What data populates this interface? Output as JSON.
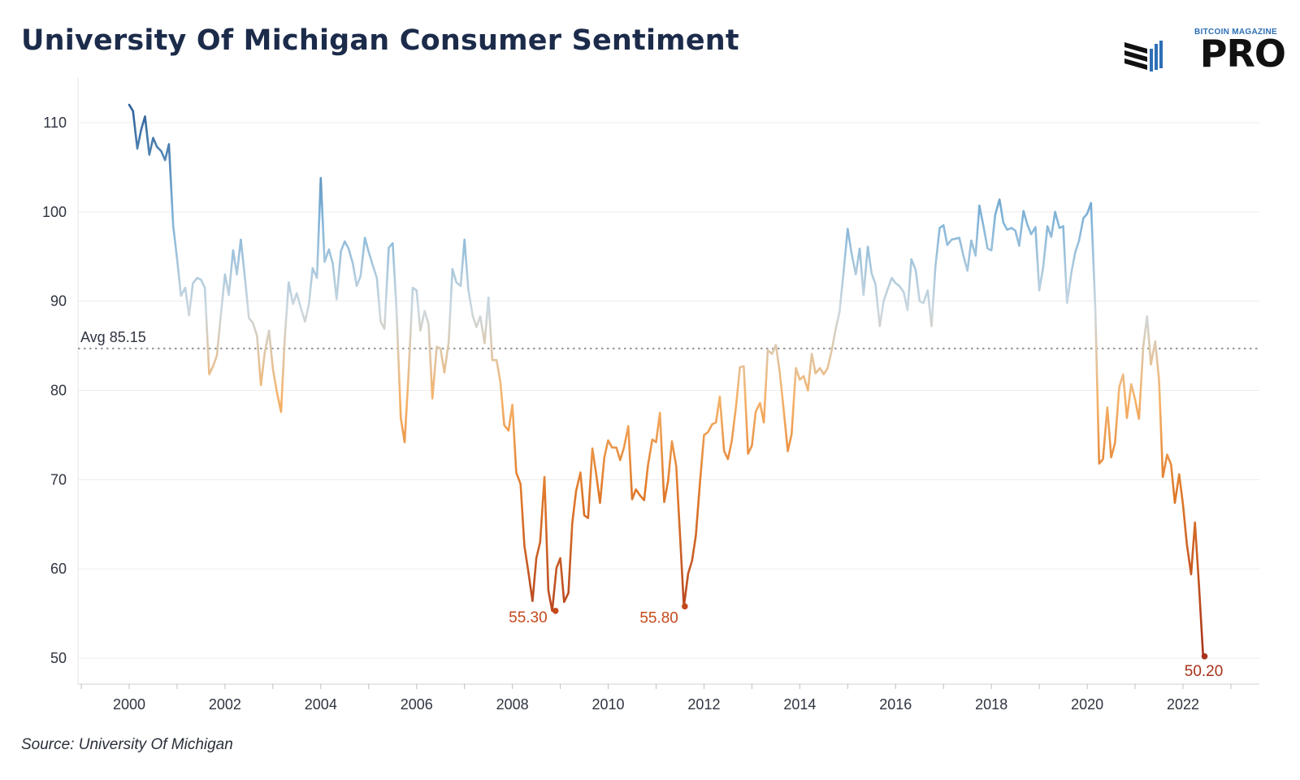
{
  "header": {
    "title": "University Of Michigan Consumer Sentiment"
  },
  "logo": {
    "small_text": "BITCOIN MAGAZINE",
    "big_text": "PRO",
    "mark_icon": "stacked-bars-logo-icon"
  },
  "footer": {
    "source": "Source: University Of Michigan"
  },
  "colors": {
    "high": "#2b5f97",
    "mid_blue": "#7fb3d8",
    "neutral": "#cbd8e0",
    "mid_orange": "#f5b36a",
    "low": "#e07a2b",
    "lowest": "#a8321a",
    "avg_line": "#9a9a9a",
    "grid": "#ececec"
  },
  "chart_data": {
    "type": "line",
    "title": "University Of Michigan Consumer Sentiment",
    "xlabel": "",
    "ylabel": "",
    "xlim": [
      1999.0,
      2023.2
    ],
    "ylim": [
      45,
      115
    ],
    "x_ticks": [
      "2000",
      "2002",
      "2004",
      "2006",
      "2008",
      "2010",
      "2012",
      "2014",
      "2016",
      "2018",
      "2020",
      "2022"
    ],
    "y_ticks": [
      "50",
      "60",
      "70",
      "80",
      "90",
      "100",
      "110"
    ],
    "grid": true,
    "average": {
      "value": 85.15,
      "label": "Avg 85.15"
    },
    "annotations": [
      {
        "x": 2008.9,
        "y": 55.3,
        "label": "55.30"
      },
      {
        "x": 2011.6,
        "y": 55.8,
        "label": "55.80"
      },
      {
        "x": 2022.45,
        "y": 50.2,
        "label": "50.20"
      }
    ],
    "series": [
      {
        "points": [
          [
            2000.0,
            112.0
          ],
          [
            2000.08,
            111.3
          ],
          [
            2000.17,
            107.1
          ],
          [
            2000.25,
            109.2
          ],
          [
            2000.33,
            110.7
          ],
          [
            2000.42,
            106.4
          ],
          [
            2000.5,
            108.3
          ],
          [
            2000.58,
            107.3
          ],
          [
            2000.67,
            106.8
          ],
          [
            2000.75,
            105.8
          ],
          [
            2000.83,
            107.6
          ],
          [
            2000.92,
            98.4
          ],
          [
            2001.0,
            94.7
          ],
          [
            2001.08,
            90.6
          ],
          [
            2001.17,
            91.5
          ],
          [
            2001.25,
            88.4
          ],
          [
            2001.33,
            92.0
          ],
          [
            2001.42,
            92.6
          ],
          [
            2001.5,
            92.4
          ],
          [
            2001.58,
            91.5
          ],
          [
            2001.67,
            81.8
          ],
          [
            2001.75,
            82.7
          ],
          [
            2001.83,
            83.9
          ],
          [
            2001.92,
            88.8
          ],
          [
            2002.0,
            93.0
          ],
          [
            2002.08,
            90.7
          ],
          [
            2002.17,
            95.7
          ],
          [
            2002.25,
            93.0
          ],
          [
            2002.33,
            96.9
          ],
          [
            2002.42,
            92.4
          ],
          [
            2002.5,
            88.1
          ],
          [
            2002.58,
            87.6
          ],
          [
            2002.67,
            86.1
          ],
          [
            2002.75,
            80.6
          ],
          [
            2002.83,
            84.2
          ],
          [
            2002.92,
            86.7
          ],
          [
            2003.0,
            82.4
          ],
          [
            2003.08,
            79.9
          ],
          [
            2003.17,
            77.6
          ],
          [
            2003.25,
            86.0
          ],
          [
            2003.33,
            92.1
          ],
          [
            2003.42,
            89.7
          ],
          [
            2003.5,
            90.9
          ],
          [
            2003.58,
            89.3
          ],
          [
            2003.67,
            87.7
          ],
          [
            2003.75,
            89.6
          ],
          [
            2003.83,
            93.7
          ],
          [
            2003.92,
            92.6
          ],
          [
            2004.0,
            103.8
          ],
          [
            2004.08,
            94.4
          ],
          [
            2004.17,
            95.8
          ],
          [
            2004.25,
            94.2
          ],
          [
            2004.33,
            90.2
          ],
          [
            2004.42,
            95.6
          ],
          [
            2004.5,
            96.7
          ],
          [
            2004.58,
            95.9
          ],
          [
            2004.67,
            94.2
          ],
          [
            2004.75,
            91.7
          ],
          [
            2004.83,
            92.8
          ],
          [
            2004.92,
            97.1
          ],
          [
            2005.0,
            95.5
          ],
          [
            2005.08,
            94.1
          ],
          [
            2005.17,
            92.6
          ],
          [
            2005.25,
            87.7
          ],
          [
            2005.33,
            86.9
          ],
          [
            2005.42,
            96.0
          ],
          [
            2005.5,
            96.5
          ],
          [
            2005.58,
            89.1
          ],
          [
            2005.67,
            76.9
          ],
          [
            2005.75,
            74.2
          ],
          [
            2005.83,
            81.6
          ],
          [
            2005.92,
            91.5
          ],
          [
            2006.0,
            91.2
          ],
          [
            2006.08,
            86.7
          ],
          [
            2006.17,
            88.9
          ],
          [
            2006.25,
            87.4
          ],
          [
            2006.33,
            79.1
          ],
          [
            2006.42,
            84.9
          ],
          [
            2006.5,
            84.7
          ],
          [
            2006.58,
            82.0
          ],
          [
            2006.67,
            85.4
          ],
          [
            2006.75,
            93.6
          ],
          [
            2006.83,
            92.1
          ],
          [
            2006.92,
            91.7
          ],
          [
            2007.0,
            96.9
          ],
          [
            2007.08,
            91.3
          ],
          [
            2007.17,
            88.4
          ],
          [
            2007.25,
            87.1
          ],
          [
            2007.33,
            88.3
          ],
          [
            2007.42,
            85.3
          ],
          [
            2007.5,
            90.4
          ],
          [
            2007.58,
            83.4
          ],
          [
            2007.67,
            83.4
          ],
          [
            2007.75,
            80.9
          ],
          [
            2007.83,
            76.1
          ],
          [
            2007.92,
            75.5
          ],
          [
            2008.0,
            78.4
          ],
          [
            2008.08,
            70.8
          ],
          [
            2008.17,
            69.5
          ],
          [
            2008.25,
            62.6
          ],
          [
            2008.33,
            59.8
          ],
          [
            2008.42,
            56.4
          ],
          [
            2008.5,
            61.2
          ],
          [
            2008.58,
            63.0
          ],
          [
            2008.67,
            70.3
          ],
          [
            2008.75,
            57.6
          ],
          [
            2008.83,
            55.3
          ],
          [
            2008.92,
            60.1
          ],
          [
            2009.0,
            61.2
          ],
          [
            2009.08,
            56.3
          ],
          [
            2009.17,
            57.3
          ],
          [
            2009.25,
            65.1
          ],
          [
            2009.33,
            68.7
          ],
          [
            2009.42,
            70.8
          ],
          [
            2009.5,
            66.0
          ],
          [
            2009.58,
            65.7
          ],
          [
            2009.67,
            73.5
          ],
          [
            2009.75,
            70.6
          ],
          [
            2009.83,
            67.4
          ],
          [
            2009.92,
            72.5
          ],
          [
            2010.0,
            74.4
          ],
          [
            2010.08,
            73.6
          ],
          [
            2010.17,
            73.6
          ],
          [
            2010.25,
            72.2
          ],
          [
            2010.33,
            73.6
          ],
          [
            2010.42,
            76.0
          ],
          [
            2010.5,
            67.8
          ],
          [
            2010.58,
            68.9
          ],
          [
            2010.67,
            68.2
          ],
          [
            2010.75,
            67.7
          ],
          [
            2010.83,
            71.6
          ],
          [
            2010.92,
            74.5
          ],
          [
            2011.0,
            74.2
          ],
          [
            2011.08,
            77.5
          ],
          [
            2011.17,
            67.5
          ],
          [
            2011.25,
            69.8
          ],
          [
            2011.33,
            74.3
          ],
          [
            2011.42,
            71.5
          ],
          [
            2011.5,
            63.7
          ],
          [
            2011.58,
            55.8
          ],
          [
            2011.67,
            59.5
          ],
          [
            2011.75,
            60.9
          ],
          [
            2011.83,
            63.7
          ],
          [
            2011.92,
            69.9
          ],
          [
            2012.0,
            75.0
          ],
          [
            2012.08,
            75.3
          ],
          [
            2012.17,
            76.2
          ],
          [
            2012.25,
            76.4
          ],
          [
            2012.33,
            79.3
          ],
          [
            2012.42,
            73.2
          ],
          [
            2012.5,
            72.3
          ],
          [
            2012.58,
            74.3
          ],
          [
            2012.67,
            78.3
          ],
          [
            2012.75,
            82.6
          ],
          [
            2012.83,
            82.7
          ],
          [
            2012.92,
            72.9
          ],
          [
            2013.0,
            73.8
          ],
          [
            2013.08,
            77.6
          ],
          [
            2013.17,
            78.6
          ],
          [
            2013.25,
            76.4
          ],
          [
            2013.33,
            84.5
          ],
          [
            2013.42,
            84.1
          ],
          [
            2013.5,
            85.1
          ],
          [
            2013.58,
            82.1
          ],
          [
            2013.67,
            77.5
          ],
          [
            2013.75,
            73.2
          ],
          [
            2013.83,
            75.1
          ],
          [
            2013.92,
            82.5
          ],
          [
            2014.0,
            81.2
          ],
          [
            2014.08,
            81.6
          ],
          [
            2014.17,
            80.0
          ],
          [
            2014.25,
            84.1
          ],
          [
            2014.33,
            81.9
          ],
          [
            2014.42,
            82.5
          ],
          [
            2014.5,
            81.8
          ],
          [
            2014.58,
            82.5
          ],
          [
            2014.67,
            84.6
          ],
          [
            2014.75,
            86.9
          ],
          [
            2014.83,
            88.8
          ],
          [
            2014.92,
            93.6
          ],
          [
            2015.0,
            98.1
          ],
          [
            2015.08,
            95.4
          ],
          [
            2015.17,
            93.0
          ],
          [
            2015.25,
            95.9
          ],
          [
            2015.33,
            90.7
          ],
          [
            2015.42,
            96.1
          ],
          [
            2015.5,
            93.1
          ],
          [
            2015.58,
            91.9
          ],
          [
            2015.67,
            87.2
          ],
          [
            2015.75,
            90.0
          ],
          [
            2015.83,
            91.3
          ],
          [
            2015.92,
            92.6
          ],
          [
            2016.0,
            92.0
          ],
          [
            2016.08,
            91.7
          ],
          [
            2016.17,
            91.0
          ],
          [
            2016.25,
            89.0
          ],
          [
            2016.33,
            94.7
          ],
          [
            2016.42,
            93.5
          ],
          [
            2016.5,
            90.0
          ],
          [
            2016.58,
            89.8
          ],
          [
            2016.67,
            91.2
          ],
          [
            2016.75,
            87.2
          ],
          [
            2016.83,
            93.8
          ],
          [
            2016.92,
            98.2
          ],
          [
            2017.0,
            98.5
          ],
          [
            2017.08,
            96.3
          ],
          [
            2017.17,
            96.9
          ],
          [
            2017.25,
            97.0
          ],
          [
            2017.33,
            97.1
          ],
          [
            2017.42,
            95.0
          ],
          [
            2017.5,
            93.4
          ],
          [
            2017.58,
            96.8
          ],
          [
            2017.67,
            95.1
          ],
          [
            2017.75,
            100.7
          ],
          [
            2017.83,
            98.5
          ],
          [
            2017.92,
            95.9
          ],
          [
            2018.0,
            95.7
          ],
          [
            2018.08,
            99.7
          ],
          [
            2018.17,
            101.4
          ],
          [
            2018.25,
            98.8
          ],
          [
            2018.33,
            98.0
          ],
          [
            2018.42,
            98.2
          ],
          [
            2018.5,
            97.9
          ],
          [
            2018.58,
            96.2
          ],
          [
            2018.67,
            100.1
          ],
          [
            2018.75,
            98.6
          ],
          [
            2018.83,
            97.5
          ],
          [
            2018.92,
            98.3
          ],
          [
            2019.0,
            91.2
          ],
          [
            2019.08,
            93.8
          ],
          [
            2019.17,
            98.4
          ],
          [
            2019.25,
            97.2
          ],
          [
            2019.33,
            100.0
          ],
          [
            2019.42,
            98.2
          ],
          [
            2019.5,
            98.4
          ],
          [
            2019.58,
            89.8
          ],
          [
            2019.67,
            93.2
          ],
          [
            2019.75,
            95.5
          ],
          [
            2019.83,
            96.8
          ],
          [
            2019.92,
            99.3
          ],
          [
            2020.0,
            99.8
          ],
          [
            2020.08,
            101.0
          ],
          [
            2020.17,
            89.1
          ],
          [
            2020.25,
            71.8
          ],
          [
            2020.33,
            72.3
          ],
          [
            2020.42,
            78.1
          ],
          [
            2020.5,
            72.5
          ],
          [
            2020.58,
            74.1
          ],
          [
            2020.67,
            80.4
          ],
          [
            2020.75,
            81.8
          ],
          [
            2020.83,
            76.9
          ],
          [
            2020.92,
            80.7
          ],
          [
            2021.0,
            79.0
          ],
          [
            2021.08,
            76.8
          ],
          [
            2021.17,
            84.9
          ],
          [
            2021.25,
            88.3
          ],
          [
            2021.33,
            82.9
          ],
          [
            2021.42,
            85.5
          ],
          [
            2021.5,
            81.2
          ],
          [
            2021.58,
            70.3
          ],
          [
            2021.67,
            72.8
          ],
          [
            2021.75,
            71.7
          ],
          [
            2021.83,
            67.4
          ],
          [
            2021.92,
            70.6
          ],
          [
            2022.0,
            67.2
          ],
          [
            2022.08,
            62.8
          ],
          [
            2022.17,
            59.4
          ],
          [
            2022.25,
            65.2
          ],
          [
            2022.33,
            58.4
          ],
          [
            2022.42,
            50.2
          ]
        ]
      }
    ]
  }
}
